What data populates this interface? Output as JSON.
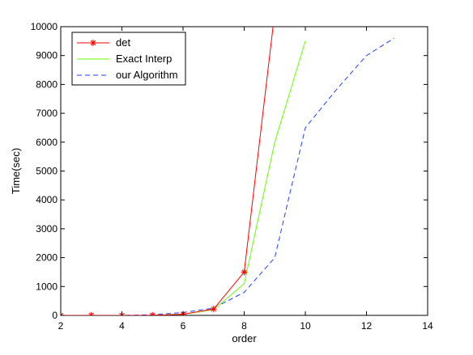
{
  "chart_data": {
    "type": "line",
    "title": "",
    "xlabel": "order",
    "ylabel": "Time(sec)",
    "xlim": [
      2,
      14
    ],
    "ylim": [
      0,
      10000
    ],
    "xticks": [
      2,
      4,
      6,
      8,
      10,
      12,
      14
    ],
    "yticks": [
      0,
      1000,
      2000,
      3000,
      4000,
      5000,
      6000,
      7000,
      8000,
      9000,
      10000
    ],
    "grid": false,
    "legend_position": "top-left",
    "series": [
      {
        "name": "det",
        "color": "#ff0000",
        "line_style": "solid",
        "marker": "asterisk",
        "x": [
          2,
          3,
          4,
          5,
          6,
          7,
          8,
          9
        ],
        "y": [
          0,
          0,
          0,
          5,
          40,
          220,
          1500,
          10500
        ]
      },
      {
        "name": "Exact Interp",
        "color": "#66ff00",
        "line_style": "solid",
        "marker": "none",
        "x": [
          2,
          3,
          4,
          5,
          6,
          7,
          8,
          9,
          10
        ],
        "y": [
          0,
          0,
          0,
          5,
          40,
          200,
          1100,
          6000,
          9500
        ]
      },
      {
        "name": "our Algorithm",
        "color": "#1f3fff",
        "line_style": "dashed",
        "marker": "none",
        "x": [
          2,
          3,
          4,
          5,
          6,
          7,
          8,
          9,
          10,
          11,
          12,
          12.9
        ],
        "y": [
          0,
          0,
          0,
          20,
          100,
          250,
          800,
          2000,
          6500,
          7800,
          9000,
          9600
        ]
      }
    ]
  }
}
